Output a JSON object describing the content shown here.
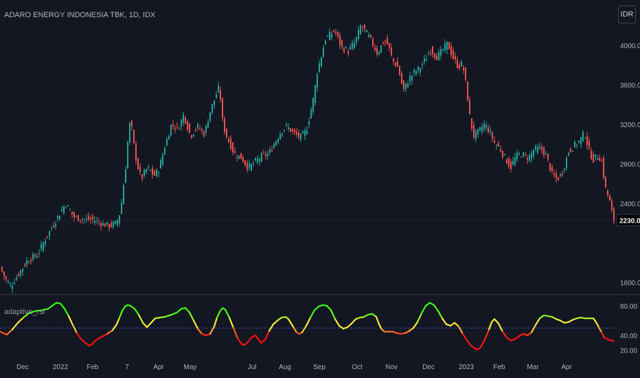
{
  "chart_data": [
    {
      "type": "candlestick",
      "title": "ADARO ENERGY INDONESIA TBK, 1D, IDX",
      "currency": "IDR",
      "ylim": [
        1480,
        4320
      ],
      "y_ticks": [
        "4000.00",
        "3600.00",
        "3200.00",
        "2800.00",
        "2400.00",
        "1600.00"
      ],
      "last_price": "2230.00",
      "last_price_value": 2230,
      "colors": {
        "up": "#26a69a",
        "down": "#ef5350",
        "background": "#131722",
        "grid": "#2a2e39"
      },
      "price_path": [
        [
          0,
          1760
        ],
        [
          8,
          1640
        ],
        [
          16,
          1560
        ],
        [
          28,
          1690
        ],
        [
          40,
          1820
        ],
        [
          55,
          1880
        ],
        [
          66,
          2030
        ],
        [
          82,
          2230
        ],
        [
          96,
          2400
        ],
        [
          108,
          2260
        ],
        [
          120,
          2240
        ],
        [
          138,
          2230
        ],
        [
          150,
          2190
        ],
        [
          160,
          2170
        ],
        [
          170,
          2200
        ],
        [
          176,
          2320
        ],
        [
          180,
          2560
        ],
        [
          184,
          2800
        ],
        [
          188,
          3150
        ],
        [
          191,
          3250
        ],
        [
          194,
          3050
        ],
        [
          200,
          2800
        ],
        [
          206,
          2650
        ],
        [
          215,
          2760
        ],
        [
          225,
          2680
        ],
        [
          232,
          2750
        ],
        [
          240,
          2960
        ],
        [
          250,
          3200
        ],
        [
          260,
          3160
        ],
        [
          268,
          3300
        ],
        [
          278,
          3080
        ],
        [
          288,
          3180
        ],
        [
          298,
          3100
        ],
        [
          306,
          3320
        ],
        [
          314,
          3480
        ],
        [
          320,
          3580
        ],
        [
          325,
          3200
        ],
        [
          332,
          3050
        ],
        [
          342,
          2900
        ],
        [
          352,
          2860
        ],
        [
          362,
          2760
        ],
        [
          372,
          2820
        ],
        [
          382,
          2880
        ],
        [
          392,
          2900
        ],
        [
          400,
          3010
        ],
        [
          410,
          3130
        ],
        [
          418,
          3180
        ],
        [
          428,
          3110
        ],
        [
          438,
          3070
        ],
        [
          446,
          3130
        ],
        [
          452,
          3300
        ],
        [
          458,
          3500
        ],
        [
          462,
          3720
        ],
        [
          468,
          3880
        ],
        [
          474,
          4060
        ],
        [
          480,
          4100
        ],
        [
          488,
          4150
        ],
        [
          498,
          3980
        ],
        [
          508,
          3940
        ],
        [
          518,
          4040
        ],
        [
          526,
          4200
        ],
        [
          532,
          4150
        ],
        [
          540,
          4060
        ],
        [
          550,
          3920
        ],
        [
          560,
          4050
        ],
        [
          566,
          4000
        ],
        [
          572,
          3850
        ],
        [
          580,
          3780
        ],
        [
          588,
          3540
        ],
        [
          596,
          3660
        ],
        [
          604,
          3730
        ],
        [
          612,
          3770
        ],
        [
          620,
          3860
        ],
        [
          628,
          3960
        ],
        [
          636,
          3880
        ],
        [
          644,
          3940
        ],
        [
          652,
          4020
        ],
        [
          660,
          3880
        ],
        [
          668,
          3780
        ],
        [
          674,
          3820
        ],
        [
          680,
          3560
        ],
        [
          684,
          3300
        ],
        [
          690,
          3080
        ],
        [
          698,
          3130
        ],
        [
          706,
          3200
        ],
        [
          714,
          3120
        ],
        [
          720,
          3020
        ],
        [
          728,
          2960
        ],
        [
          736,
          2860
        ],
        [
          744,
          2760
        ],
        [
          752,
          2880
        ],
        [
          760,
          2900
        ],
        [
          770,
          2860
        ],
        [
          778,
          2940
        ],
        [
          788,
          2960
        ],
        [
          796,
          2880
        ],
        [
          804,
          2700
        ],
        [
          812,
          2640
        ],
        [
          820,
          2720
        ],
        [
          828,
          2920
        ],
        [
          836,
          2980
        ],
        [
          844,
          3030
        ],
        [
          852,
          3110
        ],
        [
          858,
          2940
        ],
        [
          864,
          2840
        ],
        [
          870,
          2880
        ],
        [
          876,
          2850
        ],
        [
          882,
          2560
        ],
        [
          888,
          2430
        ],
        [
          894,
          2230
        ]
      ]
    },
    {
      "type": "line",
      "title": "adaptive_rsi",
      "ylim": [
        13,
        92
      ],
      "y_ticks": [
        "80.00",
        "40.00",
        "20.00"
      ],
      "midline": 50,
      "x_ticks": [
        {
          "label": "Dec",
          "x": 33
        },
        {
          "label": "2022",
          "x": 88
        },
        {
          "label": "Feb",
          "x": 135
        },
        {
          "label": "7",
          "x": 185
        },
        {
          "label": "Apr",
          "x": 231
        },
        {
          "label": "May",
          "x": 277
        },
        {
          "label": "Jul",
          "x": 367
        },
        {
          "label": "Aug",
          "x": 415
        },
        {
          "label": "Sep",
          "x": 465
        },
        {
          "label": "Oct",
          "x": 520
        },
        {
          "label": "Nov",
          "x": 570
        },
        {
          "label": "Dec",
          "x": 624
        },
        {
          "label": "2023",
          "x": 679
        },
        {
          "label": "Feb",
          "x": 727
        },
        {
          "label": "Mar",
          "x": 776
        },
        {
          "label": "Apr",
          "x": 825
        }
      ],
      "colors": {
        "high": "#39ff14",
        "mid": "#ffeb3b",
        "low": "#ff1010",
        "midline": "#3f51b5"
      },
      "values": [
        [
          0,
          45
        ],
        [
          10,
          41
        ],
        [
          18,
          48
        ],
        [
          26,
          57
        ],
        [
          34,
          64
        ],
        [
          42,
          70
        ],
        [
          52,
          73
        ],
        [
          62,
          74
        ],
        [
          70,
          76
        ],
        [
          76,
          80
        ],
        [
          82,
          84
        ],
        [
          88,
          83
        ],
        [
          94,
          76
        ],
        [
          100,
          66
        ],
        [
          106,
          54
        ],
        [
          112,
          43
        ],
        [
          118,
          35
        ],
        [
          124,
          30
        ],
        [
          130,
          26
        ],
        [
          134,
          28
        ],
        [
          140,
          34
        ],
        [
          148,
          38
        ],
        [
          156,
          42
        ],
        [
          164,
          47
        ],
        [
          170,
          55
        ],
        [
          174,
          64
        ],
        [
          178,
          73
        ],
        [
          182,
          79
        ],
        [
          186,
          81
        ],
        [
          190,
          80
        ],
        [
          196,
          76
        ],
        [
          202,
          68
        ],
        [
          208,
          57
        ],
        [
          214,
          51
        ],
        [
          220,
          57
        ],
        [
          226,
          63
        ],
        [
          232,
          64
        ],
        [
          240,
          65
        ],
        [
          250,
          68
        ],
        [
          258,
          71
        ],
        [
          264,
          76
        ],
        [
          270,
          77
        ],
        [
          276,
          71
        ],
        [
          282,
          60
        ],
        [
          288,
          49
        ],
        [
          294,
          42
        ],
        [
          300,
          40
        ],
        [
          306,
          42
        ],
        [
          312,
          52
        ],
        [
          316,
          64
        ],
        [
          320,
          72
        ],
        [
          324,
          77
        ],
        [
          328,
          75
        ],
        [
          334,
          64
        ],
        [
          340,
          50
        ],
        [
          346,
          36
        ],
        [
          352,
          28
        ],
        [
          356,
          27
        ],
        [
          360,
          30
        ],
        [
          366,
          37
        ],
        [
          372,
          40
        ],
        [
          376,
          35
        ],
        [
          380,
          30
        ],
        [
          386,
          34
        ],
        [
          392,
          46
        ],
        [
          398,
          55
        ],
        [
          404,
          60
        ],
        [
          410,
          64
        ],
        [
          416,
          65
        ],
        [
          420,
          62
        ],
        [
          424,
          56
        ],
        [
          428,
          50
        ],
        [
          432,
          44
        ],
        [
          436,
          42
        ],
        [
          440,
          44
        ],
        [
          446,
          53
        ],
        [
          452,
          64
        ],
        [
          458,
          74
        ],
        [
          464,
          79
        ],
        [
          470,
          81
        ],
        [
          476,
          80
        ],
        [
          482,
          74
        ],
        [
          488,
          62
        ],
        [
          494,
          53
        ],
        [
          500,
          49
        ],
        [
          506,
          51
        ],
        [
          512,
          56
        ],
        [
          518,
          62
        ],
        [
          524,
          64
        ],
        [
          530,
          65
        ],
        [
          536,
          68
        ],
        [
          542,
          69
        ],
        [
          548,
          65
        ],
        [
          552,
          55
        ],
        [
          556,
          48
        ],
        [
          560,
          45
        ],
        [
          566,
          45
        ],
        [
          572,
          45
        ],
        [
          578,
          43
        ],
        [
          584,
          42
        ],
        [
          590,
          43
        ],
        [
          596,
          46
        ],
        [
          602,
          50
        ],
        [
          608,
          58
        ],
        [
          614,
          70
        ],
        [
          620,
          80
        ],
        [
          626,
          84
        ],
        [
          632,
          81
        ],
        [
          638,
          73
        ],
        [
          644,
          63
        ],
        [
          650,
          55
        ],
        [
          656,
          53
        ],
        [
          662,
          57
        ],
        [
          668,
          52
        ],
        [
          674,
          42
        ],
        [
          680,
          33
        ],
        [
          686,
          26
        ],
        [
          692,
          22
        ],
        [
          696,
          21
        ],
        [
          700,
          24
        ],
        [
          706,
          34
        ],
        [
          712,
          48
        ],
        [
          716,
          58
        ],
        [
          720,
          62
        ],
        [
          726,
          56
        ],
        [
          732,
          45
        ],
        [
          738,
          37
        ],
        [
          744,
          33
        ],
        [
          750,
          35
        ],
        [
          756,
          39
        ],
        [
          762,
          42
        ],
        [
          768,
          40
        ],
        [
          774,
          44
        ],
        [
          780,
          54
        ],
        [
          786,
          63
        ],
        [
          792,
          67
        ],
        [
          798,
          66
        ],
        [
          804,
          65
        ],
        [
          810,
          62
        ],
        [
          816,
          60
        ],
        [
          822,
          57
        ],
        [
          828,
          58
        ],
        [
          834,
          61
        ],
        [
          840,
          63
        ],
        [
          846,
          64
        ],
        [
          852,
          63
        ],
        [
          858,
          63
        ],
        [
          864,
          63
        ],
        [
          868,
          58
        ],
        [
          872,
          51
        ],
        [
          876,
          44
        ],
        [
          880,
          37
        ],
        [
          886,
          34
        ],
        [
          892,
          33
        ],
        [
          894,
          32
        ]
      ]
    }
  ]
}
